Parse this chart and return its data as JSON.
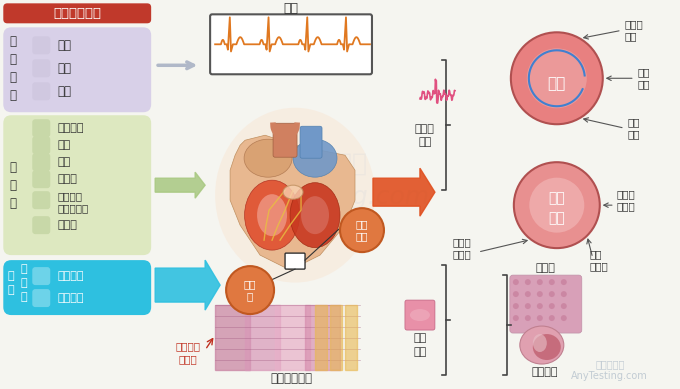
{
  "title": "房颤危险因素",
  "bg_color": "#f5f5f0",
  "title_bg": "#c0392b",
  "title_text_color": "#ffffff",
  "box1_bg": "#d8d0e8",
  "box1_label": "不\n可\n改\n变",
  "box1_items": [
    "遗传",
    "年龄",
    "性别"
  ],
  "box2_bg": "#dde8c0",
  "box2_label": "可\n改\n变",
  "box2_items": [
    "缺乏锻炼",
    "吸烟",
    "肥胖",
    "糖尿病",
    "呼吸睡眠\n暂停综合征",
    "高血压"
  ],
  "box3_bg": "#2ec0e0",
  "box3_label": "疾\n病",
  "box3_sublabel": "心\n血\n管",
  "box3_items": [
    "心力衰竭",
    "心肌梗死"
  ],
  "ecg_label": "房颤",
  "elec_label": "电生理\n改变",
  "struct_label": "结构\n改变",
  "circle1_text": "折返",
  "c1_labels_right": [
    "不应期\n缩短",
    "结构\n异常",
    "传导\n异常"
  ],
  "circle2_text": "局部\n活性",
  "c2_label_right": "延迟后\n去极化",
  "c2_label_br": "异常\n自律性",
  "c2_label_bl": "早期后\n去极化",
  "fibrosis_label": "纤维化",
  "heart_expand_label": "心房扩大",
  "ecg_bottom_label": "房颤基质形成",
  "fibrosis_circle_text": "纤维\n化",
  "inflam_circle_text": "炎症\n介质",
  "cell_label": "细胞及分\n子改变",
  "circle1_color": "#e88080",
  "circle2_color": "#e89090",
  "orange_circle_color": "#e07840",
  "arrow_color": "#e05020",
  "struct_arrow_color": "#e05020",
  "watermark_text": "美迪检测网\nAnyTesting.com",
  "watermark_color": "#c8d8e8"
}
